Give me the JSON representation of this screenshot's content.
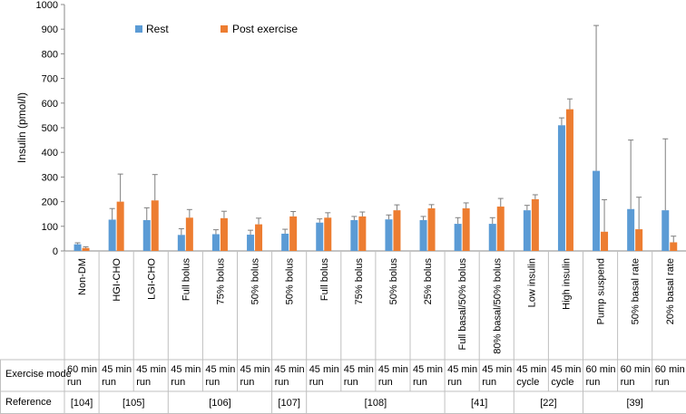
{
  "chart_data": {
    "type": "bar",
    "ylabel": "Insulin (pmol/l)",
    "ylim": [
      0,
      1000
    ],
    "yticks": [
      0,
      100,
      200,
      300,
      400,
      500,
      600,
      700,
      800,
      900,
      1000
    ],
    "grid": false,
    "legend_position": "top-left",
    "categories": [
      "Non-DM",
      "HGI-CHO",
      "LGI-CHO",
      "Full bolus",
      "75% bolus",
      "50% bolus",
      "50% bolus",
      "Full bolus",
      "75% bolus",
      "50% bolus",
      "25% bolus",
      "Full basal/50% bolus",
      "80% basal/50% bolus",
      "Low insulin",
      "High insulin",
      "Pump suspend",
      "50% basal rate",
      "20% basal rate"
    ],
    "series": [
      {
        "name": "Rest",
        "color": "#5B9BD5",
        "values": [
          27,
          127,
          125,
          65,
          68,
          66,
          70,
          115,
          125,
          128,
          125,
          110,
          110,
          165,
          510,
          325,
          170,
          165
        ],
        "errors": [
          6,
          45,
          50,
          25,
          18,
          18,
          18,
          15,
          15,
          18,
          15,
          25,
          25,
          20,
          30,
          590,
          280,
          290
        ]
      },
      {
        "name": "Post exercise",
        "color": "#ED7D31",
        "values": [
          12,
          200,
          205,
          135,
          133,
          108,
          140,
          135,
          140,
          165,
          173,
          173,
          180,
          210,
          575,
          78,
          88,
          35
        ],
        "errors": [
          5,
          112,
          105,
          33,
          28,
          25,
          20,
          20,
          18,
          22,
          15,
          22,
          33,
          18,
          42,
          130,
          130,
          25
        ]
      }
    ],
    "table": {
      "exercise_mode_label": "Exercise mode",
      "exercise_modes": [
        "60 min run",
        "45 min run",
        "45 min run",
        "45 min run",
        "45 min run",
        "45 min run",
        "45 min run",
        "45 min run",
        "45 min run",
        "45 min run",
        "45 min run",
        "45 min run",
        "45 min run",
        "45 min cycle",
        "45 min cycle",
        "60 min run",
        "60 min run",
        "60 min run"
      ],
      "reference_label": "Reference",
      "references": [
        {
          "label": "[104]",
          "start": 0,
          "span": 1
        },
        {
          "label": "[105]",
          "start": 1,
          "span": 2
        },
        {
          "label": "[106]",
          "start": 3,
          "span": 3
        },
        {
          "label": "[107]",
          "start": 6,
          "span": 1
        },
        {
          "label": "[108]",
          "start": 7,
          "span": 4
        },
        {
          "label": "[41]",
          "start": 11,
          "span": 2
        },
        {
          "label": "[22]",
          "start": 13,
          "span": 2
        },
        {
          "label": "[39]",
          "start": 15,
          "span": 3
        }
      ]
    }
  }
}
